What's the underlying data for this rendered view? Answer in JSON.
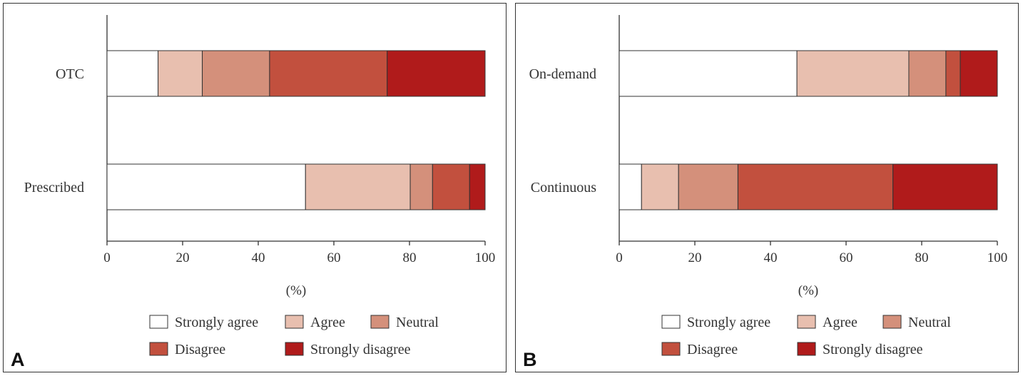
{
  "chart_data": [
    {
      "panel_label": "A",
      "type": "bar",
      "orientation": "horizontal",
      "stacked": true,
      "categories": [
        "OTC",
        "Prescribed"
      ],
      "series": [
        {
          "name": "Strongly agree",
          "color": "#ffffff",
          "values": [
            13.5,
            52.5
          ]
        },
        {
          "name": "Agree",
          "color": "#e8bfaf",
          "values": [
            11.7,
            27.7
          ]
        },
        {
          "name": "Neutral",
          "color": "#d4907b",
          "values": [
            17.8,
            5.9
          ]
        },
        {
          "name": "Disagree",
          "color": "#c2503e",
          "values": [
            31.1,
            9.8
          ]
        },
        {
          "name": "Strongly disagree",
          "color": "#b01b1b",
          "values": [
            25.9,
            4.1
          ]
        }
      ],
      "xlabel": "(%)",
      "xlim": [
        0,
        100
      ],
      "xticks": [
        "0",
        "20",
        "40",
        "60",
        "80",
        "100"
      ]
    },
    {
      "panel_label": "B",
      "type": "bar",
      "orientation": "horizontal",
      "stacked": true,
      "categories": [
        "On-demand",
        "Continuous"
      ],
      "series": [
        {
          "name": "Strongly agree",
          "color": "#ffffff",
          "values": [
            47.0,
            5.9
          ]
        },
        {
          "name": "Agree",
          "color": "#e8bfaf",
          "values": [
            29.6,
            9.8
          ]
        },
        {
          "name": "Neutral",
          "color": "#d4907b",
          "values": [
            9.8,
            15.7
          ]
        },
        {
          "name": "Disagree",
          "color": "#c2503e",
          "values": [
            3.8,
            41.0
          ]
        },
        {
          "name": "Strongly disagree",
          "color": "#b01b1b",
          "values": [
            9.8,
            27.6
          ]
        }
      ],
      "xlabel": "(%)",
      "xlim": [
        0,
        100
      ],
      "xticks": [
        "0",
        "20",
        "40",
        "60",
        "80",
        "100"
      ]
    }
  ]
}
